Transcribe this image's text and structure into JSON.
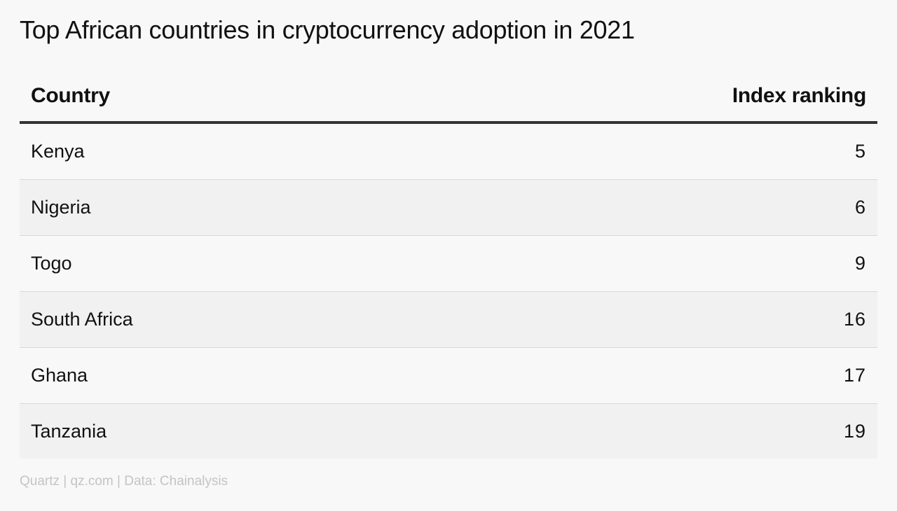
{
  "title": "Top African countries in cryptocurrency adoption in 2021",
  "footer": "Quartz | qz.com | Data: Chainalysis",
  "chart_data": {
    "type": "table",
    "title": "Top African countries in cryptocurrency adoption in 2021",
    "columns": [
      "Country",
      "Index ranking"
    ],
    "rows": [
      {
        "country": "Kenya",
        "rank": "5"
      },
      {
        "country": "Nigeria",
        "rank": "6"
      },
      {
        "country": "Togo",
        "rank": "9"
      },
      {
        "country": "South Africa",
        "rank": "16"
      },
      {
        "country": "Ghana",
        "rank": "17"
      },
      {
        "country": "Tanzania",
        "rank": "19"
      }
    ]
  },
  "colors": {
    "background": "#f8f8f8",
    "stripe": "#f1f1f1",
    "header_rule": "#333333",
    "footer_text": "#c4c4c4"
  }
}
